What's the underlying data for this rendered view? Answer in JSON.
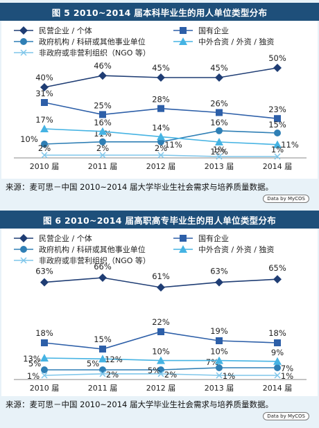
{
  "chart_data": [
    {
      "type": "line",
      "title": "图 5 2010~2014 届本科毕业生的用人单位类型分布",
      "categories": [
        "2010 届",
        "2011 届",
        "2012 届",
        "2013 届",
        "2014 届"
      ],
      "legend_placement": "top",
      "grid": false,
      "series": [
        {
          "name": "民营企业 / 个体",
          "values": [
            40,
            46,
            45,
            45,
            50
          ],
          "labels": [
            "40%",
            "46%",
            "45%",
            "45%",
            "50%"
          ],
          "color": "#1f3d74",
          "marker": "diamond"
        },
        {
          "name": "国有企业",
          "values": [
            31,
            25,
            28,
            26,
            23
          ],
          "labels": [
            "31%",
            "25%",
            "28%",
            "26%",
            "23%"
          ],
          "color": "#2d5fa8",
          "marker": "square"
        },
        {
          "name": "政府机构 / 科研或其他事业单位",
          "values": [
            10,
            11,
            11,
            16,
            15
          ],
          "labels": [
            "10%",
            "11%",
            "11%",
            "16%",
            "15%"
          ],
          "color": "#2f7fb5",
          "marker": "circle"
        },
        {
          "name": "中外合资 / 外资 / 独资",
          "values": [
            17,
            16,
            14,
            12,
            11
          ],
          "labels": [
            "17%",
            "16%",
            "14%",
            "12%",
            "11%"
          ],
          "color": "#45b3e3",
          "marker": "triangle"
        },
        {
          "name": "非政府或非营利组织（NGO 等）",
          "values": [
            2,
            2,
            2,
            1,
            1
          ],
          "labels": [
            "2%",
            "2%",
            "2%",
            "1%",
            "1%"
          ],
          "color": "#7fc6ea",
          "marker": "x"
        }
      ],
      "source": "来源：麦可思－中国 2010~2014 届大学毕业生社会需求与培养质量数据。",
      "badge": "Data by MyCOS"
    },
    {
      "type": "line",
      "title": "图 6 2010~2014 届高职高专毕业生的用人单位类型分布",
      "categories": [
        "2010 届",
        "2011 届",
        "2012 届",
        "2013 届",
        "2014 届"
      ],
      "legend_placement": "top",
      "grid": false,
      "series": [
        {
          "name": "民营企业 / 个体",
          "values": [
            63,
            66,
            61,
            63,
            65
          ],
          "labels": [
            "63%",
            "66%",
            "61%",
            "63%",
            "65%"
          ],
          "color": "#1f3d74",
          "marker": "diamond"
        },
        {
          "name": "国有企业",
          "values": [
            18,
            15,
            22,
            19,
            18
          ],
          "labels": [
            "18%",
            "15%",
            "22%",
            "19%",
            "18%"
          ],
          "color": "#2d5fa8",
          "marker": "square"
        },
        {
          "name": "政府机构 / 科研或其他事业单位",
          "values": [
            5,
            5,
            5,
            7,
            7
          ],
          "labels": [
            "5%",
            "5%",
            "5%",
            "7%",
            "7%"
          ],
          "color": "#2f7fb5",
          "marker": "circle"
        },
        {
          "name": "中外合资 / 外资 / 独资",
          "values": [
            13,
            12,
            10,
            10,
            9
          ],
          "labels": [
            "13%",
            "12%",
            "10%",
            "10%",
            "9%"
          ],
          "color": "#45b3e3",
          "marker": "triangle"
        },
        {
          "name": "非政府或非营利组织（NGO 等）",
          "values": [
            1,
            2,
            2,
            1,
            1
          ],
          "labels": [
            "1%",
            "2%",
            "2%",
            "1%",
            "1%"
          ],
          "color": "#7fc6ea",
          "marker": "x"
        }
      ],
      "source": "来源：麦可思－中国 2010~2014 届大学毕业生社会需求与培养质量数据。",
      "badge": "Data by MyCOS"
    }
  ]
}
